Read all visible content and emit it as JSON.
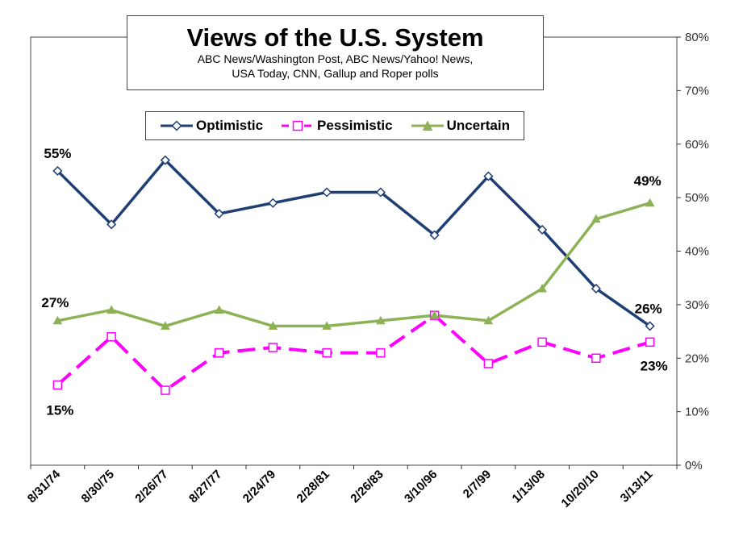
{
  "title": "Views of the U.S. System",
  "subtitle_line1": "ABC News/Washington Post, ABC News/Yahoo! News,",
  "subtitle_line2": "USA Today, CNN, Gallup and Roper polls",
  "colors": {
    "optimistic": "#1F3F74",
    "pessimistic": "#FF00FF",
    "uncertain": "#8DB256",
    "axis": "#333333",
    "frame": "#444444"
  },
  "chart_data": {
    "type": "line",
    "title": "Views of the U.S. System",
    "categories": [
      "8/31/74",
      "8/30/75",
      "2/26/77",
      "8/27/77",
      "2/24/79",
      "2/28/81",
      "2/26/83",
      "3/10/96",
      "2/7/99",
      "1/13/08",
      "10/20/10",
      "3/13/11"
    ],
    "series": [
      {
        "name": "Optimistic",
        "values": [
          55,
          45,
          57,
          47,
          49,
          51,
          51,
          43,
          54,
          44,
          33,
          26
        ],
        "marker": "diamond-icon",
        "line_style": "solid"
      },
      {
        "name": "Pessimistic",
        "values": [
          15,
          24,
          14,
          21,
          22,
          21,
          21,
          28,
          19,
          23,
          20,
          23
        ],
        "marker": "square-icon",
        "line_style": "dashed"
      },
      {
        "name": "Uncertain",
        "values": [
          27,
          29,
          26,
          29,
          26,
          26,
          27,
          28,
          27,
          33,
          46,
          49
        ],
        "marker": "triangle-icon",
        "line_style": "solid"
      }
    ],
    "ylim": [
      0,
      80
    ],
    "y_ticks": [
      "0%",
      "10%",
      "20%",
      "30%",
      "40%",
      "50%",
      "60%",
      "70%",
      "80%"
    ],
    "y_axis_side": "right",
    "xlabel": "",
    "ylabel": "",
    "grid": false,
    "legend_position": "top-center",
    "annotations": [
      {
        "series": 0,
        "index": 0,
        "text": "55%"
      },
      {
        "series": 0,
        "index": 11,
        "text": "26%"
      },
      {
        "series": 1,
        "index": 0,
        "text": "15%"
      },
      {
        "series": 1,
        "index": 11,
        "text": "23%"
      },
      {
        "series": 2,
        "index": 0,
        "text": "27%"
      },
      {
        "series": 2,
        "index": 11,
        "text": "49%"
      }
    ]
  }
}
